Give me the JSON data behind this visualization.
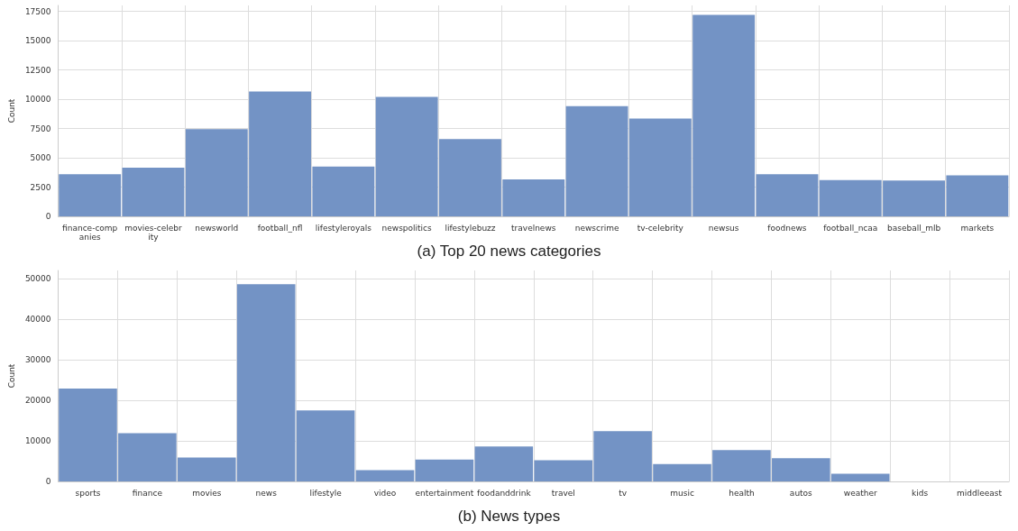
{
  "chart_data": [
    {
      "type": "bar",
      "title": "(a) Top 20 news categories",
      "ylabel": "Count",
      "categories": [
        "finance-companies",
        "movies-celebrity",
        "newsworld",
        "football_nfl",
        "lifestyleroyals",
        "newspolitics",
        "lifestylebuzz",
        "travelnews",
        "newscrime",
        "tv-celebrity",
        "newsus",
        "foodnews",
        "football_ncaa",
        "baseball_mlb",
        "markets"
      ],
      "values": [
        3600,
        4150,
        7450,
        10650,
        4250,
        10200,
        6600,
        3150,
        9400,
        8350,
        17200,
        3600,
        3100,
        3050,
        3500
      ],
      "color": "#7393c5",
      "ylim": [
        0,
        18000
      ],
      "yticks": [
        0,
        2500,
        5000,
        7500,
        10000,
        12500,
        15000,
        17500
      ],
      "grid": true
    },
    {
      "type": "bar",
      "title": "(b) News types",
      "ylabel": "Count",
      "categories": [
        "sports",
        "finance",
        "movies",
        "news",
        "lifestyle",
        "video",
        "entertainment",
        "foodanddrink",
        "travel",
        "tv",
        "music",
        "health",
        "autos",
        "weather",
        "kids",
        "middleeast"
      ],
      "values": [
        22900,
        11900,
        5900,
        48600,
        17500,
        2800,
        5400,
        8600,
        5200,
        12400,
        4300,
        7700,
        5700,
        1900,
        0,
        0
      ],
      "color": "#7393c5",
      "ylim": [
        0,
        52000
      ],
      "yticks": [
        0,
        10000,
        20000,
        30000,
        40000,
        50000
      ],
      "grid": true
    }
  ]
}
